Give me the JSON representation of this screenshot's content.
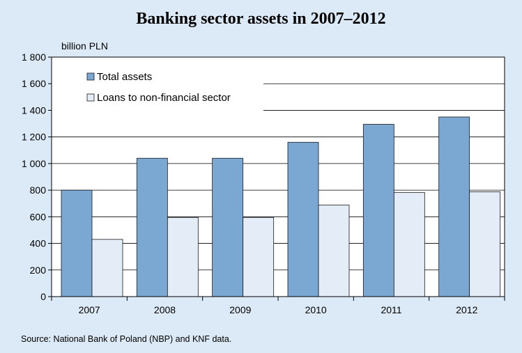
{
  "chart_data": {
    "type": "bar",
    "title": "Banking sector assets in 2007–2012",
    "ylabel": "billion PLN",
    "xlabel": "",
    "categories": [
      "2007",
      "2008",
      "2009",
      "2010",
      "2011",
      "2012"
    ],
    "series": [
      {
        "name": "Total assets",
        "values": [
          800,
          1040,
          1040,
          1160,
          1295,
          1350
        ],
        "color": "#7ba7d3"
      },
      {
        "name": "Loans to non-financial sector",
        "values": [
          430,
          595,
          595,
          688,
          783,
          788
        ],
        "color": "#e4ecf7"
      }
    ],
    "ylim": [
      0,
      1800
    ],
    "yticks": [
      0,
      200,
      400,
      600,
      800,
      1000,
      1200,
      1400,
      1600,
      1800
    ],
    "ytick_labels": [
      "0",
      "200",
      "400",
      "600",
      "800",
      "1 000",
      "1 200",
      "1 400",
      "1 600",
      "1 800"
    ],
    "grid": true,
    "legend_position": "top-left"
  },
  "source": "Source: National Bank of Poland (NBP) and KNF data."
}
